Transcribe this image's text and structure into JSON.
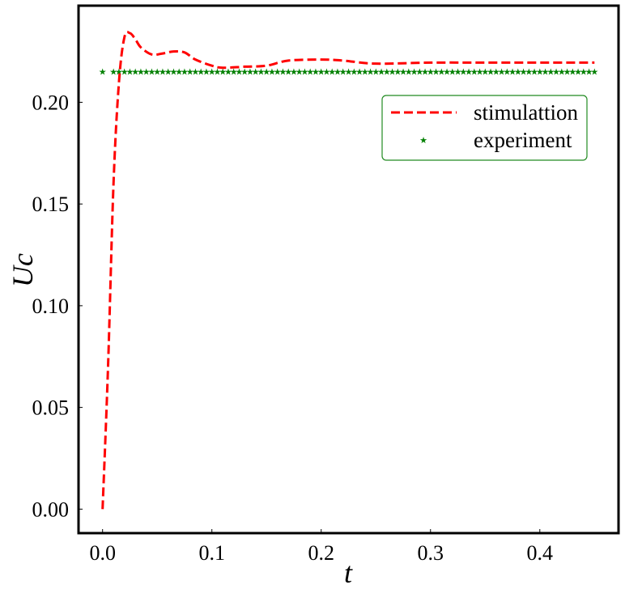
{
  "chart_data": {
    "type": "line",
    "title": "",
    "xlabel": "t",
    "ylabel": "Uc",
    "xlim": [
      -0.022,
      0.472
    ],
    "ylim": [
      -0.0118,
      0.2475
    ],
    "xticks": [
      0.0,
      0.1,
      0.2,
      0.3,
      0.4
    ],
    "xtick_labels": [
      "0.0",
      "0.1",
      "0.2",
      "0.3",
      "0.4"
    ],
    "yticks": [
      0.0,
      0.05,
      0.1,
      0.15,
      0.2
    ],
    "ytick_labels": [
      "0.00",
      "0.05",
      "0.10",
      "0.15",
      "0.20"
    ],
    "grid": false,
    "legend_position": "upper right",
    "series": [
      {
        "name": "stimulattion",
        "style": "dashed",
        "color": "#ff0000",
        "x": [
          0.0,
          0.005,
          0.01,
          0.015,
          0.02,
          0.025,
          0.03,
          0.035,
          0.045,
          0.055,
          0.065,
          0.075,
          0.085,
          0.1,
          0.11,
          0.13,
          0.15,
          0.17,
          0.2,
          0.22,
          0.25,
          0.3,
          0.35,
          0.4,
          0.45
        ],
        "y": [
          0.0,
          0.07,
          0.16,
          0.21,
          0.232,
          0.234,
          0.231,
          0.227,
          0.2235,
          0.224,
          0.225,
          0.2245,
          0.221,
          0.218,
          0.217,
          0.2175,
          0.218,
          0.2205,
          0.221,
          0.2205,
          0.219,
          0.2195,
          0.2195,
          0.2195,
          0.2195
        ]
      },
      {
        "name": "experiment",
        "style": "markers-star",
        "color": "#008000",
        "x_start": 0.0,
        "x_end": 0.45,
        "x_step": 0.005,
        "skip_x": [
          0.005
        ],
        "y_constant": 0.215
      }
    ]
  },
  "legend": {
    "entries": [
      {
        "label": "stimulattion",
        "color": "#ff0000",
        "style": "dashed"
      },
      {
        "label": "experiment",
        "color": "#008000",
        "style": "star"
      }
    ],
    "border_color": "#228b22"
  },
  "axes": {
    "xlabel": "t",
    "ylabel_main": "U",
    "ylabel_sub": "c"
  }
}
